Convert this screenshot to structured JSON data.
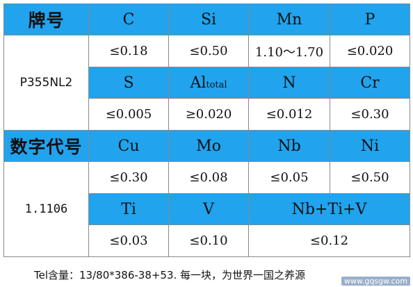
{
  "table": {
    "row1": {
      "label": "牌号",
      "cols": [
        "C",
        "Si",
        "Mn",
        "P"
      ]
    },
    "row2": {
      "values": [
        "≤0.18",
        "≤0.50",
        "1.10～1.70",
        "≤0.020"
      ]
    },
    "row3": {
      "cols": [
        "S",
        "Al",
        "N",
        "Cr"
      ],
      "al_sub": "total"
    },
    "row4": {
      "values": [
        "≤0.005",
        "≥0.020",
        "≤0.012",
        "≤0.30"
      ]
    },
    "grade": "P355NL2",
    "row5": {
      "label": "数字代号",
      "cols": [
        "Cu",
        "Mo",
        "Nb",
        "Ni"
      ]
    },
    "row6": {
      "values": [
        "≤0.30",
        "≤0.08",
        "≤0.05",
        "≤0.50"
      ]
    },
    "row7": {
      "cols": [
        "Ti",
        "V",
        "Nb+Ti+V"
      ]
    },
    "row8": {
      "values": [
        "≤0.03",
        "≤0.10",
        "≤0.12"
      ]
    },
    "number": "1.1106"
  },
  "footer": "Tel含量：13/80*386-38+53. 每一块，为世界一国之养源",
  "watermark": "www.gqsgw.com",
  "colors": {
    "header_bg": "#21a3ee",
    "border": "#888888"
  }
}
